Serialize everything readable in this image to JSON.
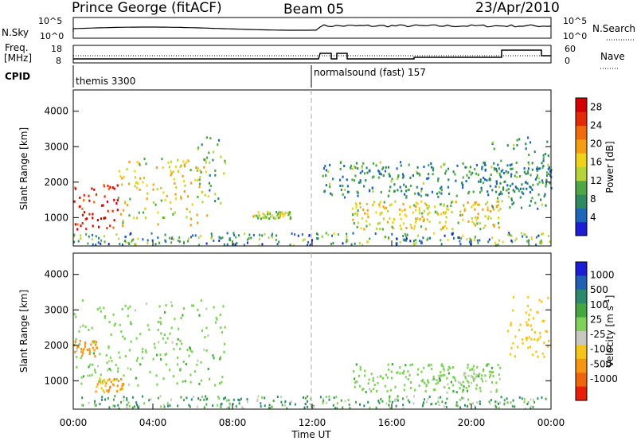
{
  "header": {
    "station": "Prince George (fitACF)",
    "beam": "Beam 05",
    "date": "23/Apr/2010"
  },
  "summary": {
    "nsky_label": "N.Sky",
    "nsky_ticks": [
      "10^5",
      "10^0"
    ],
    "nsearch_label": "N.Search",
    "freq_label_1": "Freq.",
    "freq_label_2": "[MHz]",
    "freq_ticks": [
      "18",
      "8"
    ],
    "nave_label": "Nave",
    "nave_ticks": [
      "60",
      "0"
    ],
    "cpid_label": "CPID",
    "cpid_segments": [
      {
        "name": "themis 3300",
        "start_hour": 0
      },
      {
        "name": "normalsound (fast) 157",
        "start_hour": 12
      }
    ]
  },
  "colors": {
    "power": [
      "#1d1dd6",
      "#1e66b8",
      "#2f8a5f",
      "#4da843",
      "#b6d33a",
      "#f0d21b",
      "#f59d12",
      "#ef6b0c",
      "#e52a08",
      "#d40000"
    ],
    "velocity": [
      "#1d1dd6",
      "#1f5fb5",
      "#2b8a6a",
      "#46a640",
      "#7fd15a",
      "#c8c8c0",
      "#f5c51b",
      "#f59512",
      "#ef650c",
      "#e81e08",
      "#ff0000"
    ]
  },
  "chart_data": [
    {
      "type": "heatmap",
      "name": "power",
      "ylabel": "Slant Range [km]",
      "ylim": [
        200,
        4600
      ],
      "yticks": [
        "1000",
        "2000",
        "3000",
        "4000"
      ],
      "xlim_hours": [
        0,
        24
      ],
      "colorbar_label": "Power [dB]",
      "colorbar_ticks": [
        "4",
        "8",
        "12",
        "16",
        "20",
        "24",
        "28"
      ],
      "colorbar_range": [
        0,
        30
      ],
      "regions": [
        {
          "x": [
            0,
            2.2
          ],
          "range": [
            700,
            2000
          ],
          "level": 27
        },
        {
          "x": [
            2.2,
            6.8
          ],
          "range": [
            800,
            2700
          ],
          "level": 16
        },
        {
          "x": [
            6.2,
            7.6
          ],
          "range": [
            1400,
            3300
          ],
          "level": 10
        },
        {
          "x": [
            9.0,
            11.0
          ],
          "range": [
            1000,
            1200
          ],
          "level": 14
        },
        {
          "x": [
            14.0,
            21.5
          ],
          "range": [
            700,
            1500
          ],
          "level": 16
        },
        {
          "x": [
            12.5,
            24
          ],
          "range": [
            1600,
            2600
          ],
          "level": 8
        },
        {
          "x": [
            21.0,
            24
          ],
          "range": [
            1200,
            3300
          ],
          "level": 8
        }
      ]
    },
    {
      "type": "heatmap",
      "name": "velocity",
      "ylabel": "Slant Range [km]",
      "ylim": [
        200,
        4600
      ],
      "yticks": [
        "1000",
        "2000",
        "3000",
        "4000"
      ],
      "xlim_hours": [
        0,
        24
      ],
      "xticks": [
        "00:00",
        "04:00",
        "08:00",
        "12:00",
        "16:00",
        "20:00",
        "00:00"
      ],
      "xlabel": "Time UT",
      "colorbar_label": "Velocity [m s",
      "colorbar_label_sup": "-1",
      "colorbar_ticks": [
        "1000",
        "500",
        "100",
        "25",
        "-25",
        "-100",
        "-500",
        "-1000"
      ],
      "regions": [
        {
          "x": [
            0,
            1.2
          ],
          "range": [
            1700,
            2200
          ],
          "level": -600
        },
        {
          "x": [
            1.0,
            2.5
          ],
          "range": [
            700,
            1100
          ],
          "level": -500
        },
        {
          "x": [
            0,
            7.6
          ],
          "range": [
            900,
            3300
          ],
          "level": 0
        },
        {
          "x": [
            14.0,
            21.5
          ],
          "range": [
            700,
            1500
          ],
          "level": 0
        },
        {
          "x": [
            21.8,
            24
          ],
          "range": [
            1700,
            3400
          ],
          "level": -400
        }
      ]
    }
  ]
}
